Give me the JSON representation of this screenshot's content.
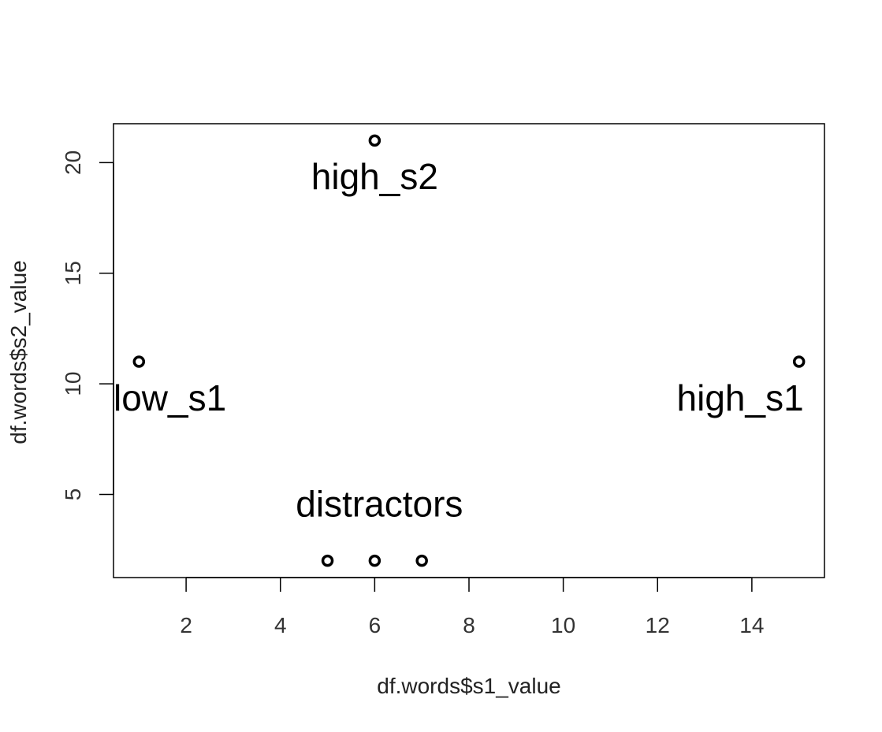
{
  "chart_data": {
    "type": "scatter",
    "title": "",
    "xlabel": "df.words$s1_value",
    "ylabel": "df.words$s2_value",
    "xlim": [
      0.46,
      15.54
    ],
    "ylim": [
      1.24,
      21.76
    ],
    "x_ticks": [
      2,
      4,
      6,
      8,
      10,
      12,
      14
    ],
    "y_ticks": [
      5,
      10,
      15,
      20
    ],
    "grid": false,
    "legend": "none",
    "points": [
      {
        "x": 6,
        "y": 21
      },
      {
        "x": 1,
        "y": 11
      },
      {
        "x": 15,
        "y": 11
      },
      {
        "x": 5,
        "y": 2
      },
      {
        "x": 6,
        "y": 2
      },
      {
        "x": 7,
        "y": 2
      }
    ],
    "annotations": [
      {
        "text": "high_s2",
        "x": 6,
        "y": 18.8,
        "anchor": "middle"
      },
      {
        "text": "low_s1",
        "x": 0.46,
        "y": 8.8,
        "anchor": "start"
      },
      {
        "text": "high_s1",
        "x": 15.1,
        "y": 8.8,
        "anchor": "end"
      },
      {
        "text": "distractors",
        "x": 6.1,
        "y": 4.0,
        "anchor": "middle"
      }
    ]
  }
}
